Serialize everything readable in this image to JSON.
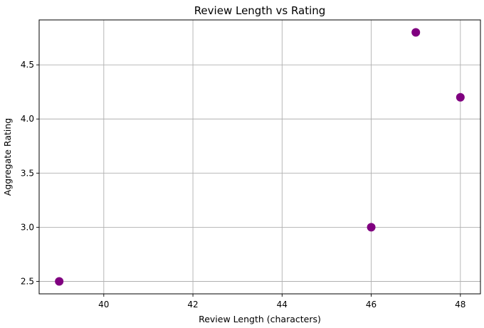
{
  "chart_data": {
    "type": "scatter",
    "title": "Review Length vs Rating",
    "xlabel": "Review Length (characters)",
    "ylabel": "Aggregate Rating",
    "x": [
      39,
      46,
      47,
      48
    ],
    "y": [
      2.5,
      3.0,
      4.8,
      4.2
    ],
    "xlim": [
      38.55,
      48.45
    ],
    "ylim": [
      2.385,
      4.915
    ],
    "xticks": [
      40,
      42,
      44,
      46,
      48
    ],
    "xtick_labels": [
      "40",
      "42",
      "44",
      "46",
      "48"
    ],
    "yticks": [
      2.5,
      3.0,
      3.5,
      4.0,
      4.5
    ],
    "ytick_labels": [
      "2.5",
      "3.0",
      "3.5",
      "4.0",
      "4.5"
    ],
    "grid": true,
    "marker_color": "#800080"
  }
}
